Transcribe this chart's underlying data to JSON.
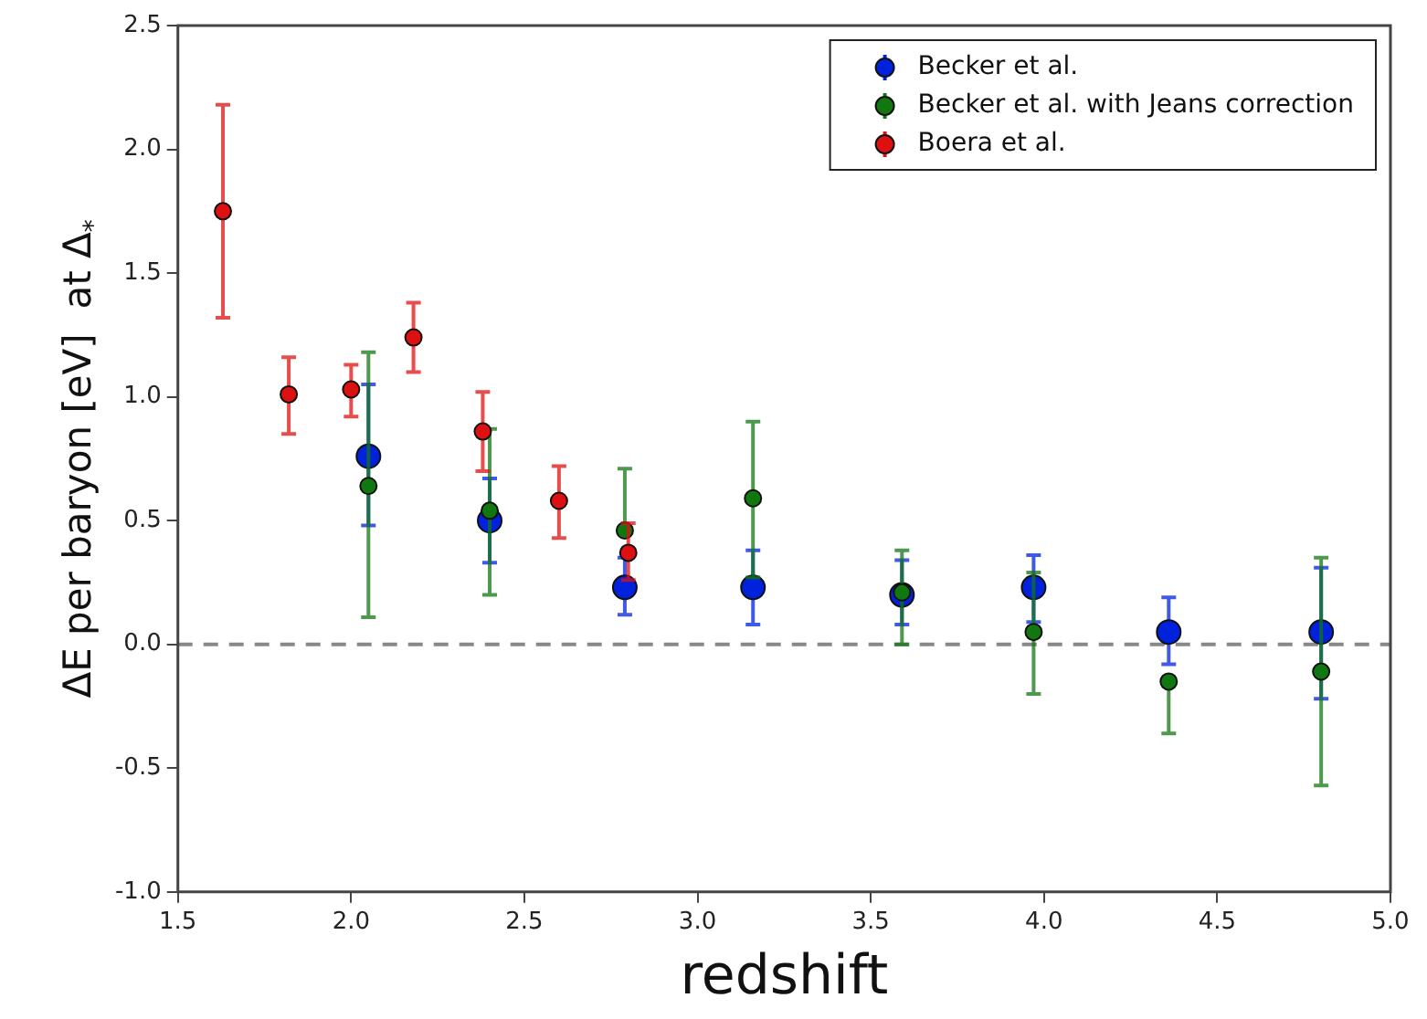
{
  "chart_data": {
    "type": "scatter",
    "xlabel": "redshift",
    "ylabel": "ΔE per baryon [eV]  at Δ$_{*}$",
    "xlim": [
      1.5,
      5.0
    ],
    "xticks": [
      1.5,
      {
        "value": 2,
        "label": "2.0"
      },
      2.5,
      {
        "value": 3,
        "label": "3.0"
      },
      3.5,
      {
        "value": 4,
        "label": "4.0"
      },
      4.5,
      {
        "value": 5,
        "label": "5.0"
      }
    ],
    "ylim": [
      -1.0,
      2.5
    ],
    "yticks": [
      {
        "value": -1,
        "label": "-1.0"
      },
      -0.5,
      {
        "value": 0,
        "label": "0.0"
      },
      0.5,
      {
        "value": 1,
        "label": "1.0"
      },
      1.5,
      {
        "value": 2,
        "label": "2.0"
      },
      2.5
    ],
    "grid": false,
    "legend": "top right",
    "marker": "circle",
    "ref_lines": [
      {
        "axis": "y",
        "value": 0,
        "color": "#888888",
        "line_style": "dashed"
      }
    ],
    "series": [
      {
        "name": "Becker et al.",
        "color": "#0022dd",
        "x": [
          2.05,
          2.4,
          2.79,
          3.16,
          3.59,
          3.97,
          4.36,
          4.8
        ],
        "values": [
          0.76,
          0.5,
          0.23,
          0.23,
          0.2,
          0.23,
          0.05,
          0.05
        ],
        "errors": [
          [
            0.48,
            1.05
          ],
          [
            0.33,
            0.67
          ],
          [
            0.12,
            0.35
          ],
          [
            0.08,
            0.38
          ],
          [
            0.08,
            0.34
          ],
          [
            0.09,
            0.36
          ],
          [
            -0.08,
            0.19
          ],
          [
            -0.22,
            0.31
          ]
        ]
      },
      {
        "name": "Becker et al. with Jeans correction",
        "color": "#117711",
        "x": [
          2.05,
          2.4,
          2.79,
          3.16,
          3.59,
          3.97,
          4.36,
          4.8
        ],
        "values": [
          0.64,
          0.54,
          0.46,
          0.59,
          0.21,
          0.05,
          -0.15,
          -0.11
        ],
        "errors": [
          [
            0.11,
            1.18
          ],
          [
            0.2,
            0.87
          ],
          [
            0.46,
            0.71
          ],
          [
            0.27,
            0.9
          ],
          [
            0.0,
            0.38
          ],
          [
            -0.2,
            0.29
          ],
          [
            -0.36,
            -0.15
          ],
          [
            -0.57,
            0.35
          ]
        ]
      },
      {
        "name": "Boera et al.",
        "color": "#dd1111",
        "x": [
          1.63,
          1.82,
          2.0,
          2.18,
          2.38,
          2.6,
          2.8
        ],
        "values": [
          1.75,
          1.01,
          1.03,
          1.24,
          0.86,
          0.58,
          0.37
        ],
        "errors": [
          [
            1.32,
            2.18
          ],
          [
            0.85,
            1.16
          ],
          [
            0.92,
            1.13
          ],
          [
            1.1,
            1.38
          ],
          [
            0.7,
            1.02
          ],
          [
            0.43,
            0.72
          ],
          [
            0.26,
            0.49
          ]
        ]
      }
    ]
  }
}
